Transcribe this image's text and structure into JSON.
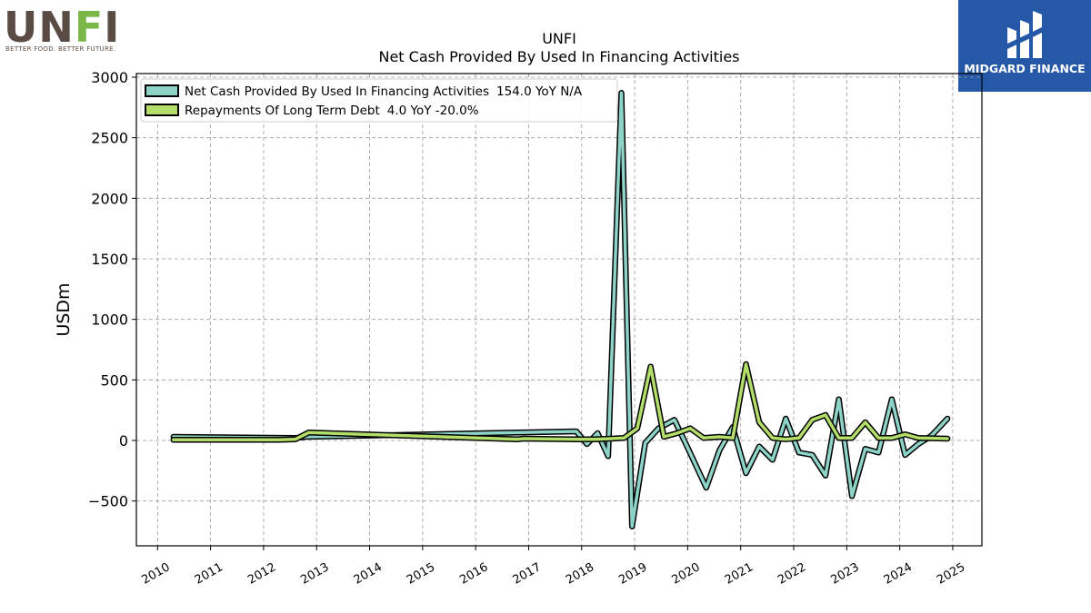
{
  "logos": {
    "left": {
      "wordmark_start": "UN",
      "wordmark_accent": "F",
      "wordmark_end": "I",
      "tagline": "BETTER FOOD. BETTER FUTURE.",
      "color": "#5a4c44",
      "accent_color": "#7ab648"
    },
    "right": {
      "text": "MIDGARD FINANCE",
      "background": "#2559a8"
    }
  },
  "chart_data": {
    "type": "line",
    "title": "UNFI",
    "subtitle": "Net Cash Provided By Used In Financing Activities",
    "xlabel": "",
    "ylabel": "USDm",
    "xlim": [
      2009.6,
      2025.55
    ],
    "ylim": [
      -870,
      3030
    ],
    "x_ticks": [
      "2010",
      "2011",
      "2012",
      "2013",
      "2014",
      "2015",
      "2016",
      "2017",
      "2018",
      "2019",
      "2020",
      "2021",
      "2022",
      "2023",
      "2024",
      "2025"
    ],
    "y_ticks": [
      -500,
      0,
      500,
      1000,
      1500,
      2000,
      2500,
      3000
    ],
    "y_tick_labels": [
      "−500",
      "0",
      "500",
      "1000",
      "1500",
      "2000",
      "2500",
      "3000"
    ],
    "grid": true,
    "legend_position": "top-left",
    "series": [
      {
        "name": "Net Cash Provided By Used In Financing Activities",
        "legend_suffix": "154.0 YoY N/A",
        "color": "#8dd3c7",
        "x": [
          2010.3,
          2012.6,
          2012.8,
          2017.9,
          2018.1,
          2018.3,
          2018.5,
          2018.75,
          2018.95,
          2019.2,
          2019.45,
          2019.75,
          2020.0,
          2020.35,
          2020.6,
          2020.85,
          2021.1,
          2021.35,
          2021.6,
          2021.85,
          2022.1,
          2022.35,
          2022.6,
          2022.85,
          2023.1,
          2023.35,
          2023.6,
          2023.85,
          2024.1,
          2024.35,
          2024.6,
          2024.9
        ],
        "y": [
          30,
          20,
          30,
          75,
          -30,
          60,
          -130,
          2870,
          -710,
          -20,
          100,
          170,
          -60,
          -390,
          -80,
          110,
          -270,
          -50,
          -160,
          180,
          -100,
          -120,
          -290,
          340,
          -460,
          -70,
          -100,
          340,
          -120,
          -30,
          40,
          180
        ]
      },
      {
        "name": "Repayments Of Long Term Debt",
        "legend_suffix": "4.0 YoY -20.0%",
        "color": "#b3de69",
        "x": [
          2010.3,
          2012.3,
          2012.6,
          2012.85,
          2016.8,
          2016.9,
          2017.9,
          2018.25,
          2018.55,
          2018.8,
          2019.05,
          2019.3,
          2019.55,
          2019.8,
          2020.05,
          2020.3,
          2020.6,
          2020.85,
          2021.1,
          2021.35,
          2021.6,
          2021.85,
          2022.1,
          2022.35,
          2022.6,
          2022.85,
          2023.1,
          2023.35,
          2023.6,
          2023.85,
          2024.1,
          2024.35,
          2024.9
        ],
        "y": [
          5,
          5,
          10,
          65,
          10,
          15,
          10,
          10,
          15,
          20,
          100,
          610,
          30,
          60,
          100,
          20,
          30,
          20,
          630,
          150,
          20,
          10,
          20,
          170,
          210,
          20,
          20,
          150,
          20,
          20,
          50,
          20,
          15
        ]
      }
    ]
  }
}
